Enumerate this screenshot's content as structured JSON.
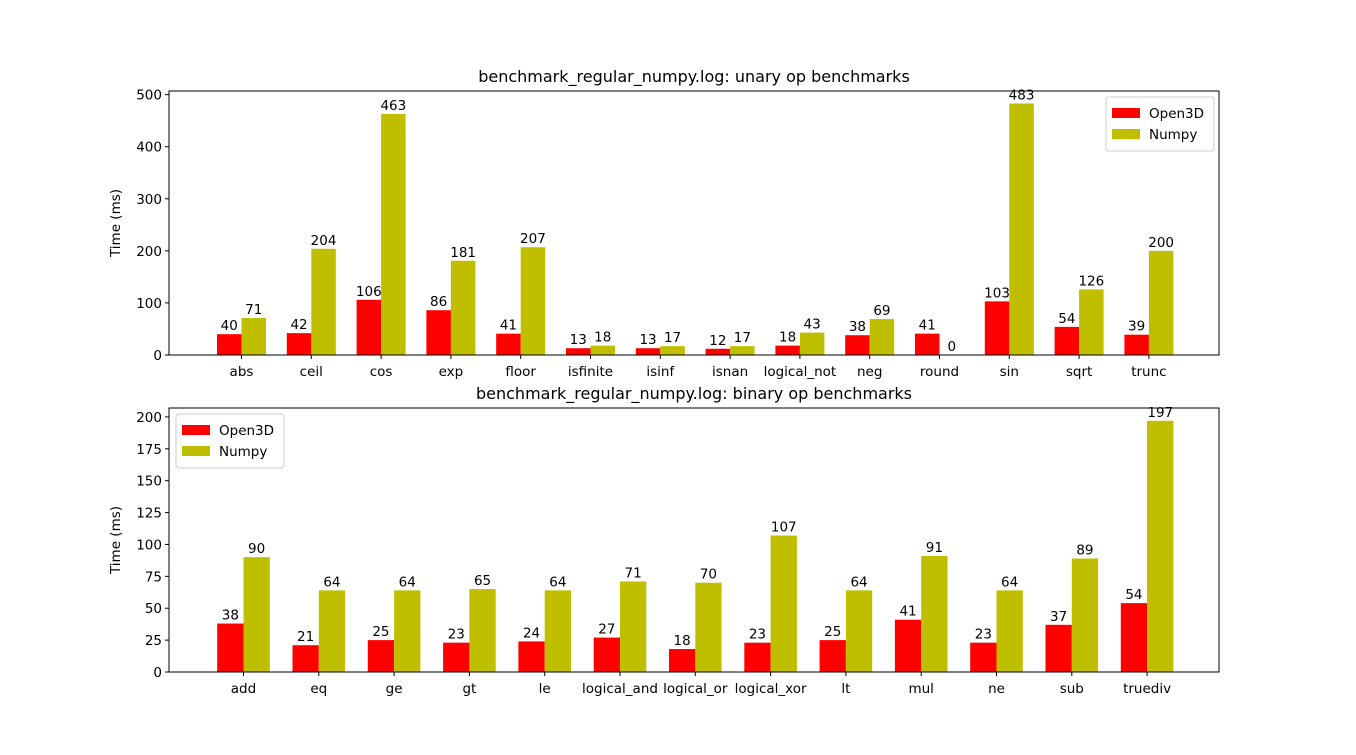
{
  "chart_data": [
    {
      "type": "bar",
      "title": "benchmark_regular_numpy.log: unary op benchmarks",
      "xlabel": "",
      "ylabel": "Time (ms)",
      "ylim": [
        0,
        507
      ],
      "yticks": [
        0,
        100,
        200,
        300,
        400,
        500
      ],
      "legend_position": "top-right",
      "categories": [
        "abs",
        "ceil",
        "cos",
        "exp",
        "floor",
        "isfinite",
        "isinf",
        "isnan",
        "logical_not",
        "neg",
        "round",
        "sin",
        "sqrt",
        "trunc"
      ],
      "series": [
        {
          "name": "Open3D",
          "color": "#ff0000",
          "values": [
            40,
            42,
            106,
            86,
            41,
            13,
            13,
            12,
            18,
            38,
            41,
            103,
            54,
            39
          ]
        },
        {
          "name": "Numpy",
          "color": "#bfbf00",
          "values": [
            71,
            204,
            463,
            181,
            207,
            18,
            17,
            17,
            43,
            69,
            0,
            483,
            126,
            200
          ]
        }
      ]
    },
    {
      "type": "bar",
      "title": "benchmark_regular_numpy.log: binary op benchmarks",
      "xlabel": "",
      "ylabel": "Time (ms)",
      "ylim": [
        0,
        207
      ],
      "yticks": [
        0,
        25,
        50,
        75,
        100,
        125,
        150,
        175,
        200
      ],
      "legend_position": "top-left",
      "categories": [
        "add",
        "eq",
        "ge",
        "gt",
        "le",
        "logical_and",
        "logical_or",
        "logical_xor",
        "lt",
        "mul",
        "ne",
        "sub",
        "truediv"
      ],
      "series": [
        {
          "name": "Open3D",
          "color": "#ff0000",
          "values": [
            38,
            21,
            25,
            23,
            24,
            27,
            18,
            23,
            25,
            41,
            23,
            37,
            54
          ]
        },
        {
          "name": "Numpy",
          "color": "#bfbf00",
          "values": [
            90,
            64,
            64,
            65,
            64,
            71,
            70,
            107,
            64,
            91,
            64,
            89,
            197
          ]
        }
      ]
    }
  ]
}
